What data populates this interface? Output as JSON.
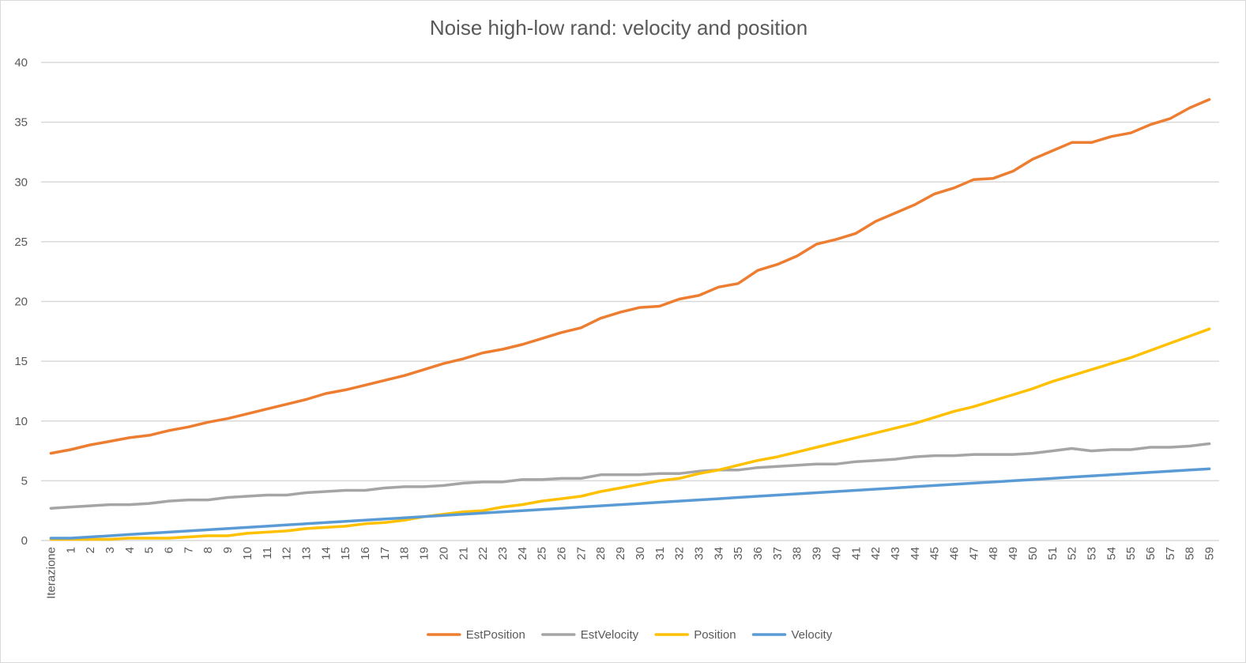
{
  "chart_data": {
    "type": "line",
    "title": "Noise high-low rand: velocity and position",
    "xlabel": "",
    "ylabel": "",
    "ylim": [
      0,
      40
    ],
    "yticks": [
      0,
      5,
      10,
      15,
      20,
      25,
      30,
      35,
      40
    ],
    "grid": true,
    "legend_position": "bottom",
    "categories": [
      "Iterazione",
      "1",
      "2",
      "3",
      "4",
      "5",
      "6",
      "7",
      "8",
      "9",
      "10",
      "11",
      "12",
      "13",
      "14",
      "15",
      "16",
      "17",
      "18",
      "19",
      "20",
      "21",
      "22",
      "23",
      "24",
      "25",
      "26",
      "27",
      "28",
      "29",
      "30",
      "31",
      "32",
      "33",
      "34",
      "35",
      "36",
      "37",
      "38",
      "39",
      "40",
      "41",
      "42",
      "43",
      "44",
      "45",
      "46",
      "47",
      "48",
      "49",
      "50",
      "51",
      "52",
      "53",
      "54",
      "55",
      "56",
      "57",
      "58",
      "59"
    ],
    "series": [
      {
        "name": "EstPosition",
        "color": "#ed7d31",
        "values": [
          7.3,
          7.6,
          8.0,
          8.3,
          8.6,
          8.8,
          9.2,
          9.5,
          9.9,
          10.2,
          10.6,
          11.0,
          11.4,
          11.8,
          12.3,
          12.6,
          13.0,
          13.4,
          13.8,
          14.3,
          14.8,
          15.2,
          15.7,
          16.0,
          16.4,
          16.9,
          17.4,
          17.8,
          18.6,
          19.1,
          19.5,
          19.6,
          20.2,
          20.5,
          21.2,
          21.5,
          22.6,
          23.1,
          23.8,
          24.8,
          25.2,
          25.7,
          26.7,
          27.4,
          28.1,
          29.0,
          29.5,
          30.2,
          30.3,
          30.9,
          31.9,
          32.6,
          33.3,
          33.3,
          33.8,
          34.1,
          34.8,
          35.3,
          36.2,
          36.9
        ]
      },
      {
        "name": "EstVelocity",
        "color": "#a5a5a5",
        "values": [
          2.7,
          2.8,
          2.9,
          3.0,
          3.0,
          3.1,
          3.3,
          3.4,
          3.4,
          3.6,
          3.7,
          3.8,
          3.8,
          4.0,
          4.1,
          4.2,
          4.2,
          4.4,
          4.5,
          4.5,
          4.6,
          4.8,
          4.9,
          4.9,
          5.1,
          5.1,
          5.2,
          5.2,
          5.5,
          5.5,
          5.5,
          5.6,
          5.6,
          5.8,
          5.9,
          5.9,
          6.1,
          6.2,
          6.3,
          6.4,
          6.4,
          6.6,
          6.7,
          6.8,
          7.0,
          7.1,
          7.1,
          7.2,
          7.2,
          7.2,
          7.3,
          7.5,
          7.7,
          7.5,
          7.6,
          7.6,
          7.8,
          7.8,
          7.9,
          8.1
        ]
      },
      {
        "name": "Position",
        "color": "#ffc000",
        "values": [
          0.1,
          0.1,
          0.1,
          0.1,
          0.2,
          0.2,
          0.2,
          0.3,
          0.4,
          0.4,
          0.6,
          0.7,
          0.8,
          1.0,
          1.1,
          1.2,
          1.4,
          1.5,
          1.7,
          2.0,
          2.2,
          2.4,
          2.5,
          2.8,
          3.0,
          3.3,
          3.5,
          3.7,
          4.1,
          4.4,
          4.7,
          5.0,
          5.2,
          5.6,
          5.9,
          6.3,
          6.7,
          7.0,
          7.4,
          7.8,
          8.2,
          8.6,
          9.0,
          9.4,
          9.8,
          10.3,
          10.8,
          11.2,
          11.7,
          12.2,
          12.7,
          13.3,
          13.8,
          14.3,
          14.8,
          15.3,
          15.9,
          16.5,
          17.1,
          17.7
        ]
      },
      {
        "name": "Velocity",
        "color": "#5b9bd5",
        "values": [
          0.2,
          0.2,
          0.3,
          0.4,
          0.5,
          0.6,
          0.7,
          0.8,
          0.9,
          1.0,
          1.1,
          1.2,
          1.3,
          1.4,
          1.5,
          1.6,
          1.7,
          1.8,
          1.9,
          2.0,
          2.1,
          2.2,
          2.3,
          2.4,
          2.5,
          2.6,
          2.7,
          2.8,
          2.9,
          3.0,
          3.1,
          3.2,
          3.3,
          3.4,
          3.5,
          3.6,
          3.7,
          3.8,
          3.9,
          4.0,
          4.1,
          4.2,
          4.3,
          4.4,
          4.5,
          4.6,
          4.7,
          4.8,
          4.9,
          5.0,
          5.1,
          5.2,
          5.3,
          5.4,
          5.5,
          5.6,
          5.7,
          5.8,
          5.9,
          6.0
        ]
      }
    ]
  }
}
